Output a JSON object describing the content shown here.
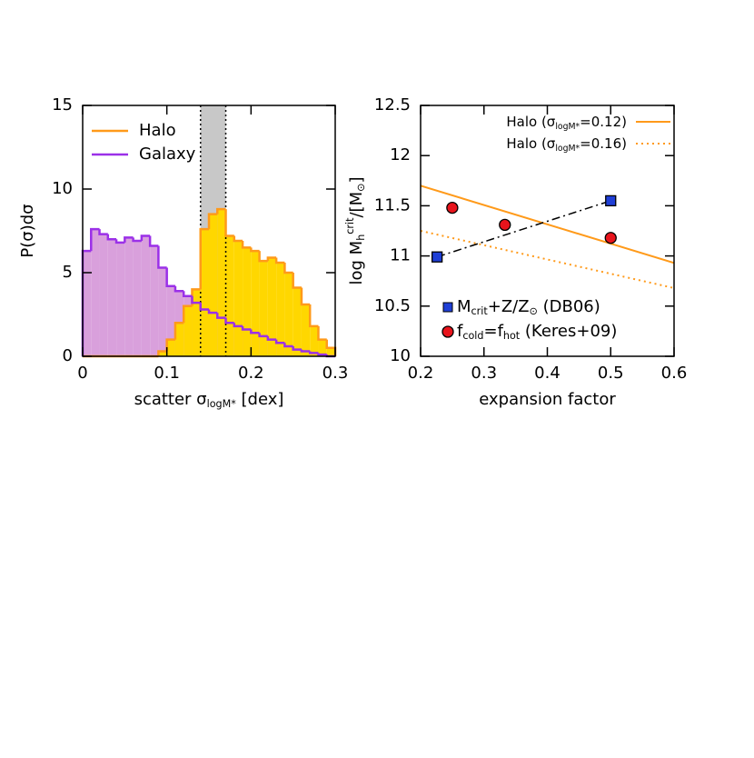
{
  "chart_data": [
    {
      "type": "histogram",
      "x_label": [
        {
          "text": "scatter σ"
        },
        {
          "text": "logM*",
          "shift": "sub"
        },
        {
          "text": " [dex]"
        }
      ],
      "y_label": "P(σ)dσ",
      "xlim": [
        0,
        0.3
      ],
      "xticks": [
        0,
        0.1,
        0.2,
        0.3
      ],
      "ylim": [
        0,
        15
      ],
      "yticks": [
        0,
        5,
        10,
        15
      ],
      "band": [
        0.14,
        0.17
      ],
      "band_color": "#c8c8c8",
      "legend": "upper left",
      "bins": [
        0,
        0.01,
        0.02,
        0.03,
        0.04,
        0.05,
        0.06,
        0.07,
        0.08,
        0.09,
        0.1,
        0.11,
        0.12,
        0.13,
        0.14,
        0.15,
        0.16,
        0.17,
        0.18,
        0.19,
        0.2,
        0.21,
        0.22,
        0.23,
        0.24,
        0.25,
        0.26,
        0.27,
        0.28,
        0.29,
        0.3
      ],
      "series": [
        {
          "name": "Galaxy",
          "color": "#9b30e8",
          "fill": "#d9a0dc",
          "values": [
            6.3,
            7.6,
            7.3,
            7.0,
            6.8,
            7.1,
            6.9,
            7.2,
            6.6,
            5.3,
            4.2,
            3.9,
            3.6,
            3.2,
            2.8,
            2.6,
            2.3,
            2.0,
            1.8,
            1.6,
            1.4,
            1.2,
            1.0,
            0.8,
            0.6,
            0.4,
            0.3,
            0.2,
            0.1,
            0.0
          ]
        },
        {
          "name": "Halo",
          "color": "#ff9a1a",
          "fill": "#ffd700",
          "values": [
            0,
            0,
            0,
            0,
            0,
            0,
            0,
            0,
            0,
            0.3,
            1.0,
            2.0,
            3.0,
            4.0,
            7.6,
            8.5,
            8.8,
            7.2,
            6.9,
            6.5,
            6.3,
            5.7,
            5.9,
            5.6,
            5.0,
            4.1,
            3.1,
            1.8,
            1.0,
            0.5
          ]
        }
      ],
      "legend_order": [
        1,
        0
      ]
    },
    {
      "type": "line",
      "x_label": "expansion factor",
      "y_label": [
        {
          "text": "log M"
        },
        {
          "text": "h",
          "shift": "sub"
        },
        {
          "text": "crit",
          "shift": "super"
        },
        {
          "text": "/[M"
        },
        {
          "text": "⊙",
          "shift": "sub"
        },
        {
          "text": "]"
        }
      ],
      "xlim": [
        0.2,
        0.6
      ],
      "xticks": [
        0.2,
        0.3,
        0.4,
        0.5,
        0.6
      ],
      "ylim": [
        10,
        12.5
      ],
      "yticks": [
        10,
        10.5,
        11,
        11.5,
        12,
        12.5
      ],
      "legend": {
        "lines": "upper right",
        "markers": "lower left"
      },
      "series": [
        {
          "name": [
            {
              "text": "Halo  (σ"
            },
            {
              "text": "logM*",
              "shift": "sub"
            },
            {
              "text": "=0.12)"
            }
          ],
          "color": "#ff9a1a",
          "style": "solid",
          "x": [
            0.2,
            0.6
          ],
          "values": [
            11.7,
            10.93
          ]
        },
        {
          "name": [
            {
              "text": "Halo  (σ"
            },
            {
              "text": "logM*",
              "shift": "sub"
            },
            {
              "text": "=0.16)"
            }
          ],
          "color": "#ff9a1a",
          "style": "dotted",
          "x": [
            0.2,
            0.6
          ],
          "values": [
            11.25,
            10.68
          ]
        },
        {
          "name": [
            {
              "text": "M"
            },
            {
              "text": "crit",
              "shift": "sub"
            },
            {
              "text": "+Z/Z"
            },
            {
              "text": "⊙",
              "shift": "sub"
            },
            {
              "text": " (DB06)"
            }
          ],
          "color": "#000000",
          "style": "dashdot",
          "marker": "square",
          "marker_color": "#1f3fd6",
          "x": [
            0.226,
            0.5
          ],
          "values": [
            10.99,
            11.55
          ]
        },
        {
          "name": [
            {
              "text": "f"
            },
            {
              "text": "cold",
              "shift": "sub"
            },
            {
              "text": "=f"
            },
            {
              "text": "hot",
              "shift": "sub"
            },
            {
              "text": " (Keres+09)"
            }
          ],
          "color": "#000000",
          "style": "none",
          "marker": "circle",
          "marker_color": "#e8141c",
          "x": [
            0.25,
            0.333,
            0.5
          ],
          "values": [
            11.48,
            11.31,
            11.18
          ]
        }
      ]
    }
  ]
}
